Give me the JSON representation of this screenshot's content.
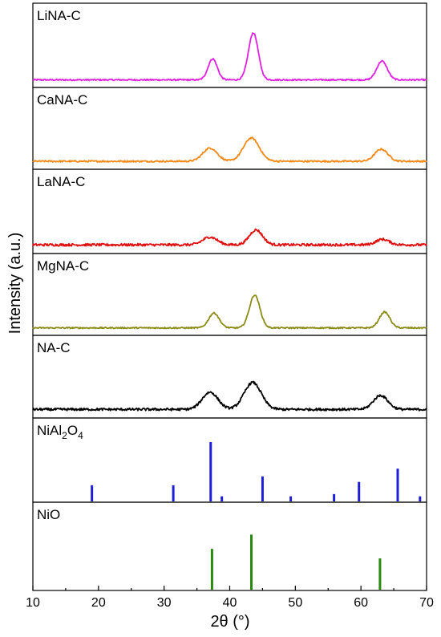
{
  "chart_data": {
    "type": "line",
    "xlabel": "2θ (°)",
    "ylabel": "Intensity (a.u.)",
    "xlim": [
      10,
      70
    ],
    "xticks": [
      "10",
      "20",
      "30",
      "40",
      "50",
      "60",
      "70"
    ],
    "panels": [
      {
        "name": "LiNA-C",
        "kind": "pattern",
        "color": "#e020e0",
        "baseline": 0.05,
        "noise": 0.025,
        "peaks": [
          [
            37.4,
            0.38,
            0.7
          ],
          [
            43.6,
            0.85,
            0.75
          ],
          [
            63.2,
            0.34,
            0.8
          ]
        ]
      },
      {
        "name": "CaNA-C",
        "kind": "pattern",
        "color": "#f28a1a",
        "baseline": 0.06,
        "noise": 0.03,
        "peaks": [
          [
            37.0,
            0.25,
            1.1
          ],
          [
            43.3,
            0.44,
            1.2
          ],
          [
            63.1,
            0.23,
            1.0
          ]
        ]
      },
      {
        "name": "LaNA-C",
        "kind": "pattern",
        "color": "#e01010",
        "baseline": 0.07,
        "noise": 0.045,
        "peaks": [
          [
            37.0,
            0.14,
            1.1
          ],
          [
            44.0,
            0.27,
            1.0
          ],
          [
            63.3,
            0.1,
            1.0
          ]
        ]
      },
      {
        "name": "MgNA-C",
        "kind": "pattern",
        "color": "#8b8b18",
        "baseline": 0.05,
        "noise": 0.025,
        "peaks": [
          [
            37.6,
            0.28,
            0.8
          ],
          [
            43.8,
            0.62,
            0.8
          ],
          [
            63.6,
            0.3,
            0.8
          ]
        ]
      },
      {
        "name": "NA-C",
        "kind": "pattern",
        "color": "#000000",
        "baseline": 0.07,
        "noise": 0.045,
        "peaks": [
          [
            37.0,
            0.32,
            1.2
          ],
          [
            43.5,
            0.5,
            1.3
          ],
          [
            63.0,
            0.26,
            1.1
          ]
        ]
      },
      {
        "name": "NiAl2O4",
        "label_parts": [
          "NiAl",
          "2",
          "O",
          "4"
        ],
        "kind": "reference",
        "color": "#1f1fd8",
        "lines": [
          [
            19.0,
            0.22
          ],
          [
            31.4,
            0.22
          ],
          [
            37.1,
            1.0
          ],
          [
            38.8,
            0.02
          ],
          [
            45.0,
            0.38
          ],
          [
            49.3,
            0.02
          ],
          [
            55.9,
            0.06
          ],
          [
            59.7,
            0.28
          ],
          [
            65.6,
            0.52
          ],
          [
            69.0,
            0.02
          ]
        ]
      },
      {
        "name": "NiO",
        "kind": "reference",
        "color": "#2a8a10",
        "lines": [
          [
            37.3,
            0.62
          ],
          [
            43.3,
            0.86
          ],
          [
            62.9,
            0.46
          ]
        ]
      }
    ]
  }
}
